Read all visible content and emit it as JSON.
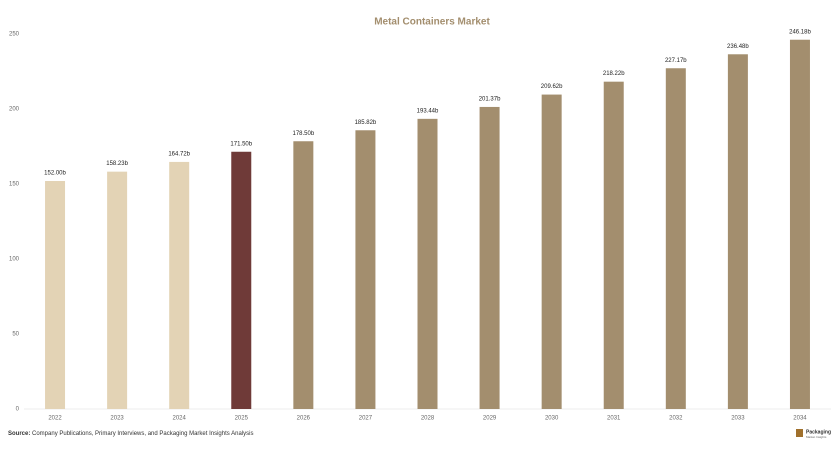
{
  "chart_data": {
    "type": "bar",
    "title": "Metal Containers Market",
    "categories": [
      "2022",
      "2023",
      "2024",
      "2025",
      "2026",
      "2027",
      "2028",
      "2029",
      "2030",
      "2031",
      "2032",
      "2033",
      "2034"
    ],
    "values": [
      152.0,
      158.23,
      164.72,
      171.5,
      178.5,
      185.82,
      193.44,
      201.37,
      209.62,
      218.22,
      227.17,
      236.48,
      246.18
    ],
    "value_labels": [
      "152.00b",
      "158.23b",
      "164.72b",
      "171.50b",
      "178.50b",
      "185.82b",
      "193.44b",
      "201.37b",
      "209.62b",
      "218.22b",
      "227.17b",
      "236.48b",
      "246.18b"
    ],
    "colors": [
      "#e3d3b5",
      "#e3d3b5",
      "#e3d3b5",
      "#6f3a38",
      "#a38e6e",
      "#a38e6e",
      "#a38e6e",
      "#a38e6e",
      "#a38e6e",
      "#a38e6e",
      "#a38e6e",
      "#a38e6e",
      "#a38e6e"
    ],
    "ylim": [
      0,
      250
    ],
    "yticks": [
      0,
      50,
      100,
      150,
      200,
      250
    ],
    "grid": false
  },
  "footer": {
    "source_label": "Source:",
    "source_text": "Company Publications, Primary Interviews, and Packaging Market Insights Analysis",
    "logo_title": "Packaging",
    "logo_subtitle": "Market Insights"
  }
}
